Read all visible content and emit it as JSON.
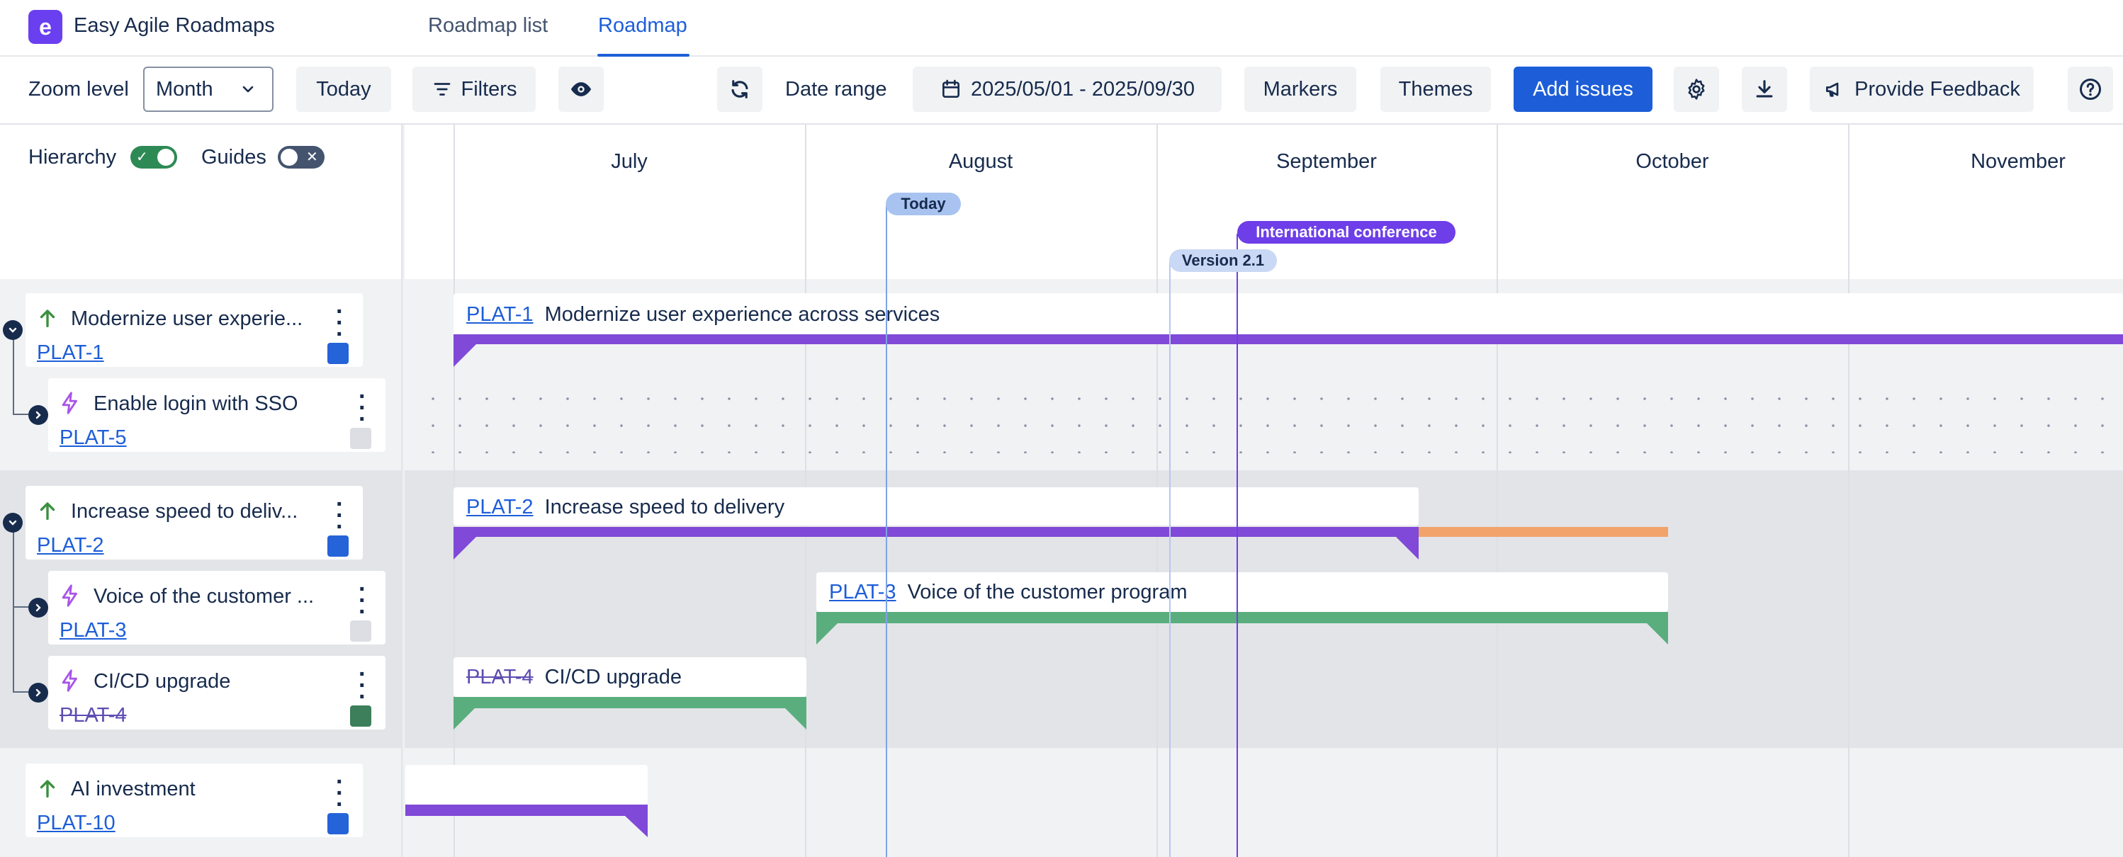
{
  "app": {
    "title": "Easy Agile Roadmaps",
    "logo_letter": "e",
    "tabs": [
      {
        "label": "Roadmap list",
        "active": false
      },
      {
        "label": "Roadmap",
        "active": true
      }
    ]
  },
  "toolbar": {
    "zoom_label": "Zoom level",
    "zoom_value": "Month",
    "today_label": "Today",
    "filters_label": "Filters",
    "date_range_label": "Date range",
    "date_range_value": "2025/05/01 - 2025/09/30",
    "markers_label": "Markers",
    "themes_label": "Themes",
    "add_issues_label": "Add issues",
    "feedback_label": "Provide Feedback"
  },
  "left_panel": {
    "hierarchy_label": "Hierarchy",
    "hierarchy_on": true,
    "guides_label": "Guides",
    "guides_on": false
  },
  "timeline": {
    "months": [
      "July",
      "August",
      "September",
      "October",
      "November"
    ],
    "markers": [
      {
        "label": "Today",
        "color": "#a9c3f0"
      },
      {
        "label": "International conference",
        "color": "#6e3ee8"
      },
      {
        "label": "Version 2.1",
        "color": "#c9d8f5"
      }
    ]
  },
  "issues": [
    {
      "key": "PLAT-1",
      "short_title": "Modernize user experie...",
      "title": "Modernize user experience across services",
      "type": "initiative",
      "swatch": "#2563d8",
      "strike": false
    },
    {
      "key": "PLAT-5",
      "short_title": "Enable login with SSO",
      "title": "",
      "type": "epic",
      "swatch": "#dcdee3",
      "strike": false
    },
    {
      "key": "PLAT-2",
      "short_title": "Increase speed to deliv...",
      "title": "Increase speed to delivery",
      "type": "initiative",
      "swatch": "#2563d8",
      "strike": false
    },
    {
      "key": "PLAT-3",
      "short_title": "Voice of the customer ...",
      "title": "Voice of the customer program",
      "type": "epic",
      "swatch": "#dcdee3",
      "strike": false
    },
    {
      "key": "PLAT-4",
      "short_title": "CI/CD upgrade",
      "title": "CI/CD upgrade",
      "type": "epic",
      "swatch": "#3c7f5a",
      "strike": true
    },
    {
      "key": "PLAT-10",
      "short_title": "AI investment",
      "title": "",
      "type": "initiative",
      "swatch": "#2563d8",
      "strike": false
    }
  ],
  "colors": {
    "accent": "#1d5ed8",
    "initiative_bar": "#8049d8",
    "epic_bar": "#5aae7e",
    "overdue_bar": "#f2a36b"
  }
}
